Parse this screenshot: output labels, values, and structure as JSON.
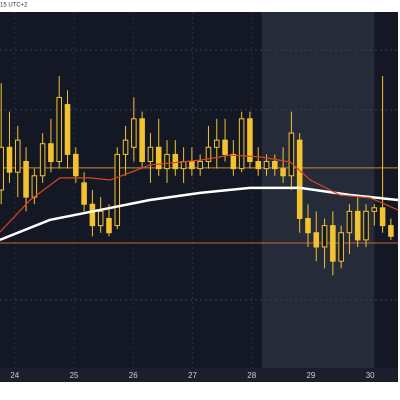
{
  "header_text": "15 UTC+2",
  "chart_data": {
    "type": "candlestick",
    "xlim": [
      23.75,
      30.47
    ],
    "ylim": [
      0,
      100
    ],
    "xticks": [
      24,
      25,
      26,
      27,
      28,
      29,
      30
    ],
    "gridlines": [
      89.3,
      72.5,
      19.1
    ],
    "color": "#f2c230",
    "x": [
      23.77,
      23.91,
      24.05,
      24.19,
      24.33,
      24.47,
      24.61,
      24.75,
      24.89,
      25.03,
      25.17,
      25.31,
      25.45,
      25.59,
      25.73,
      25.87,
      26.01,
      26.15,
      26.29,
      26.43,
      26.57,
      26.71,
      26.85,
      26.99,
      27.13,
      27.27,
      27.41,
      27.55,
      27.69,
      27.83,
      27.97,
      28.11,
      28.25,
      28.39,
      28.53,
      28.67,
      28.81,
      28.95,
      29.09,
      29.23,
      29.37,
      29.51,
      29.65,
      29.79,
      29.93,
      30.07,
      30.21,
      30.35
    ],
    "open": [
      50,
      62,
      55,
      58,
      48,
      54,
      63,
      58,
      74,
      60,
      52,
      46,
      40,
      42,
      40,
      60,
      62,
      70,
      58,
      62,
      56,
      60,
      56,
      58,
      56,
      58,
      62,
      64,
      60,
      56,
      70,
      58,
      56,
      58,
      56,
      54,
      64,
      42,
      38,
      34,
      40,
      30,
      38,
      44,
      36,
      44,
      45,
      40
    ],
    "high": [
      80,
      72,
      68,
      62,
      56,
      66,
      70,
      82,
      78,
      62,
      55,
      50,
      48,
      46,
      62,
      68,
      76,
      72,
      66,
      70,
      64,
      64,
      62,
      62,
      60,
      68,
      70,
      70,
      64,
      72,
      72,
      62,
      60,
      60,
      62,
      72,
      66,
      46,
      44,
      42,
      44,
      40,
      46,
      48,
      46,
      46,
      82,
      42
    ],
    "low": [
      46,
      52,
      48,
      44,
      46,
      52,
      55,
      56,
      56,
      52,
      44,
      37,
      38,
      37,
      39,
      54,
      58,
      56,
      52,
      54,
      52,
      54,
      52,
      54,
      54,
      56,
      56,
      58,
      54,
      55,
      56,
      54,
      54,
      54,
      52,
      50,
      38,
      34,
      30,
      28,
      26,
      28,
      32,
      34,
      34,
      40,
      38,
      36
    ],
    "close": [
      62,
      55,
      64,
      48,
      54,
      63,
      58,
      76,
      60,
      54,
      46,
      40,
      44,
      38,
      60,
      64,
      70,
      58,
      62,
      56,
      60,
      56,
      58,
      56,
      58,
      62,
      64,
      60,
      56,
      70,
      58,
      56,
      58,
      56,
      54,
      66,
      42,
      38,
      34,
      40,
      30,
      38,
      44,
      36,
      44,
      45,
      40,
      37
    ],
    "moving_averages": [
      {
        "color": "#ffffff",
        "x": [
          23.75,
          24.59,
          25.44,
          26.28,
          27.13,
          27.97,
          28.82,
          29.66,
          30.47
        ],
        "values": [
          36,
          41.6,
          44.4,
          47.2,
          49.2,
          50.6,
          50.6,
          48.6,
          47.2
        ]
      },
      {
        "color": "#d9451e",
        "x": [
          23.75,
          24.26,
          24.76,
          25.27,
          25.61,
          26.28,
          27.13,
          27.64,
          28.14,
          28.65,
          28.99,
          29.49,
          30.0,
          30.47
        ],
        "values": [
          38.2,
          47.2,
          53.4,
          53.4,
          52.8,
          57.0,
          58.4,
          59.8,
          59.3,
          57.9,
          52.8,
          48.6,
          47.8,
          44.4
        ]
      }
    ],
    "levels": [
      {
        "value": 56.2,
        "color": "#c98a2a"
      },
      {
        "value": 35.1,
        "color": "#c9603a"
      }
    ],
    "shaded_ranges": [
      [
        28.17,
        30.07
      ]
    ]
  }
}
